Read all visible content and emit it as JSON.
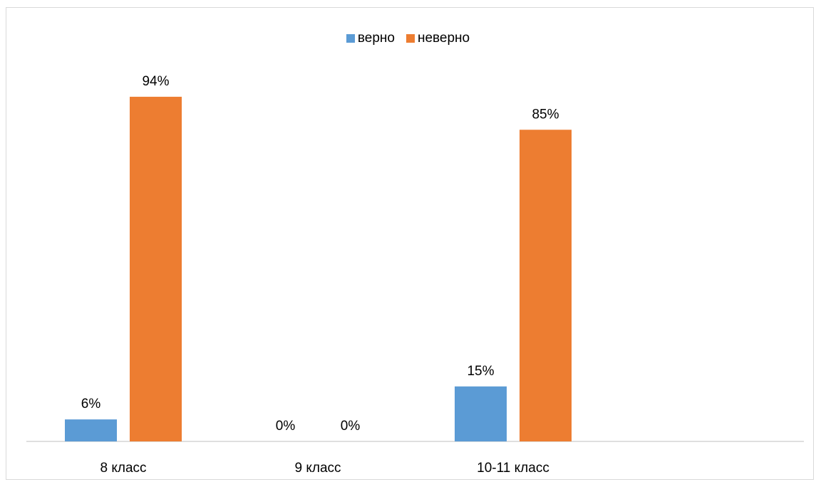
{
  "chart_data": {
    "type": "bar",
    "categories": [
      "8 класс",
      "9 класс",
      "10-11 класс"
    ],
    "series": [
      {
        "name": "верно",
        "values": [
          6,
          0,
          15
        ],
        "labels": [
          "6%",
          "0%",
          "15%"
        ],
        "color": "#5b9bd5"
      },
      {
        "name": "неверно",
        "values": [
          94,
          0,
          85
        ],
        "labels": [
          "94%",
          "0%",
          "85%"
        ],
        "color": "#ed7d31"
      }
    ],
    "ylim": [
      0,
      100
    ],
    "grid": false,
    "legend": "top-center",
    "title": "",
    "xlabel": "",
    "ylabel": ""
  }
}
